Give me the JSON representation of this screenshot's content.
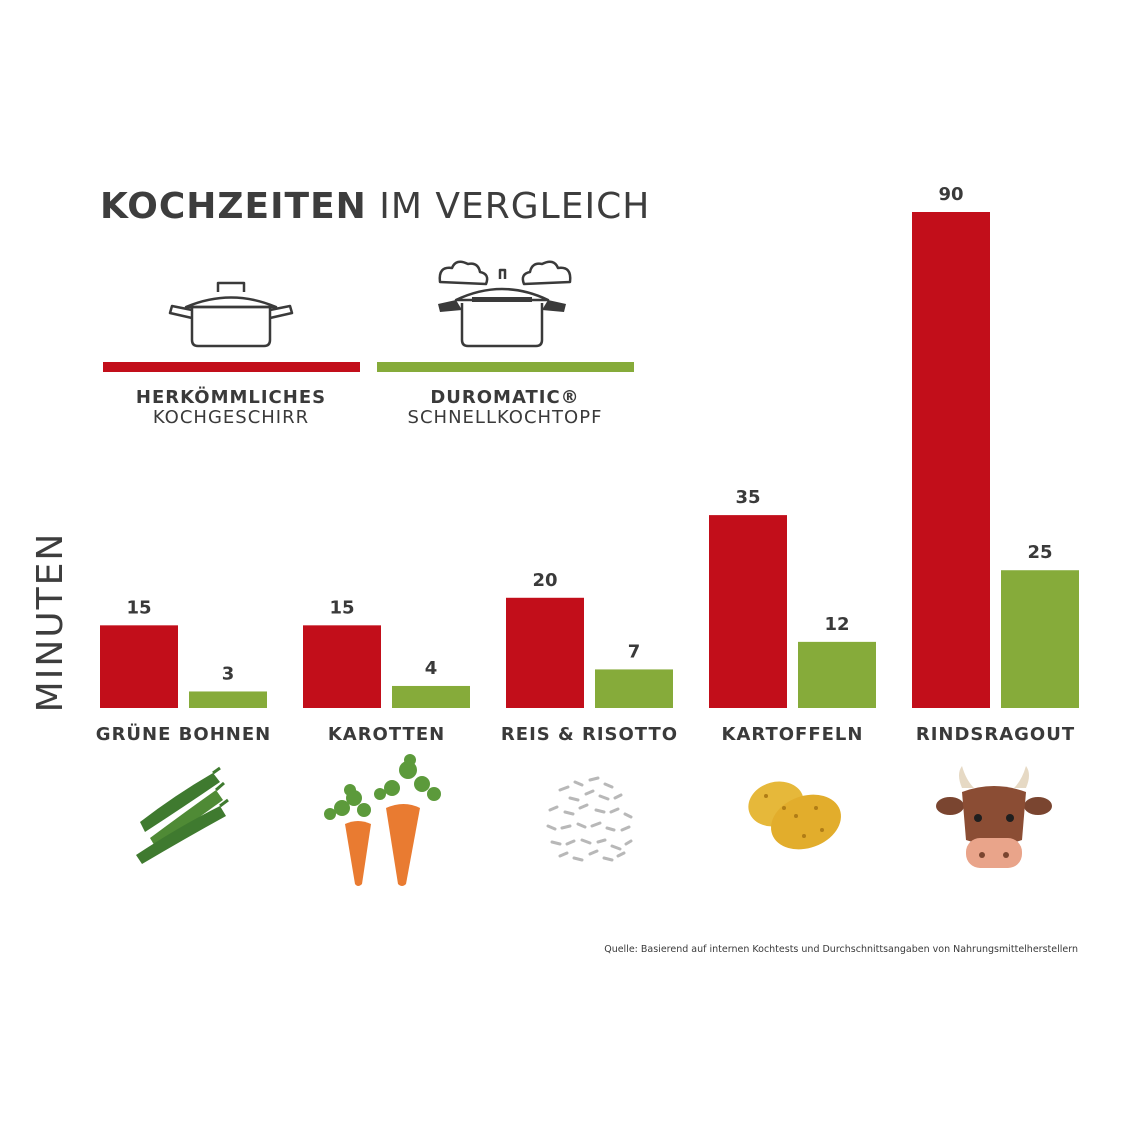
{
  "chart_data": {
    "type": "bar",
    "title_bold": "KOCHZEITEN",
    "title_rest": " IM VERGLEICH",
    "ylabel": "MINUTEN",
    "xlabel": "",
    "ylim": [
      0,
      90
    ],
    "categories": [
      "GRÜNE BOHNEN",
      "KAROTTEN",
      "REIS & RISOTTO",
      "KARTOFFELN",
      "RINDSRAGOUT"
    ],
    "category_icons": [
      "green-beans-icon",
      "carrots-icon",
      "rice-icon",
      "potatoes-icon",
      "cow-icon"
    ],
    "series": [
      {
        "name_line1": "HERKÖMMLICHES",
        "name_line2": "KOCHGESCHIRR",
        "icon": "cooking-pot-icon",
        "color": "#c20e1a",
        "values": [
          15,
          15,
          20,
          35,
          90
        ]
      },
      {
        "name_line1": "DUROMATIC®",
        "name_line2": "SCHNELLKOCHTOPF",
        "icon": "pressure-cooker-icon",
        "color": "#86ab3a",
        "values": [
          3,
          4,
          7,
          12,
          25
        ]
      }
    ],
    "legend_position": "top-left",
    "grid": false,
    "source_note": "Quelle: Basierend auf internen Kochtests und Durchschnittsangaben von Nahrungsmittelherstellern"
  }
}
